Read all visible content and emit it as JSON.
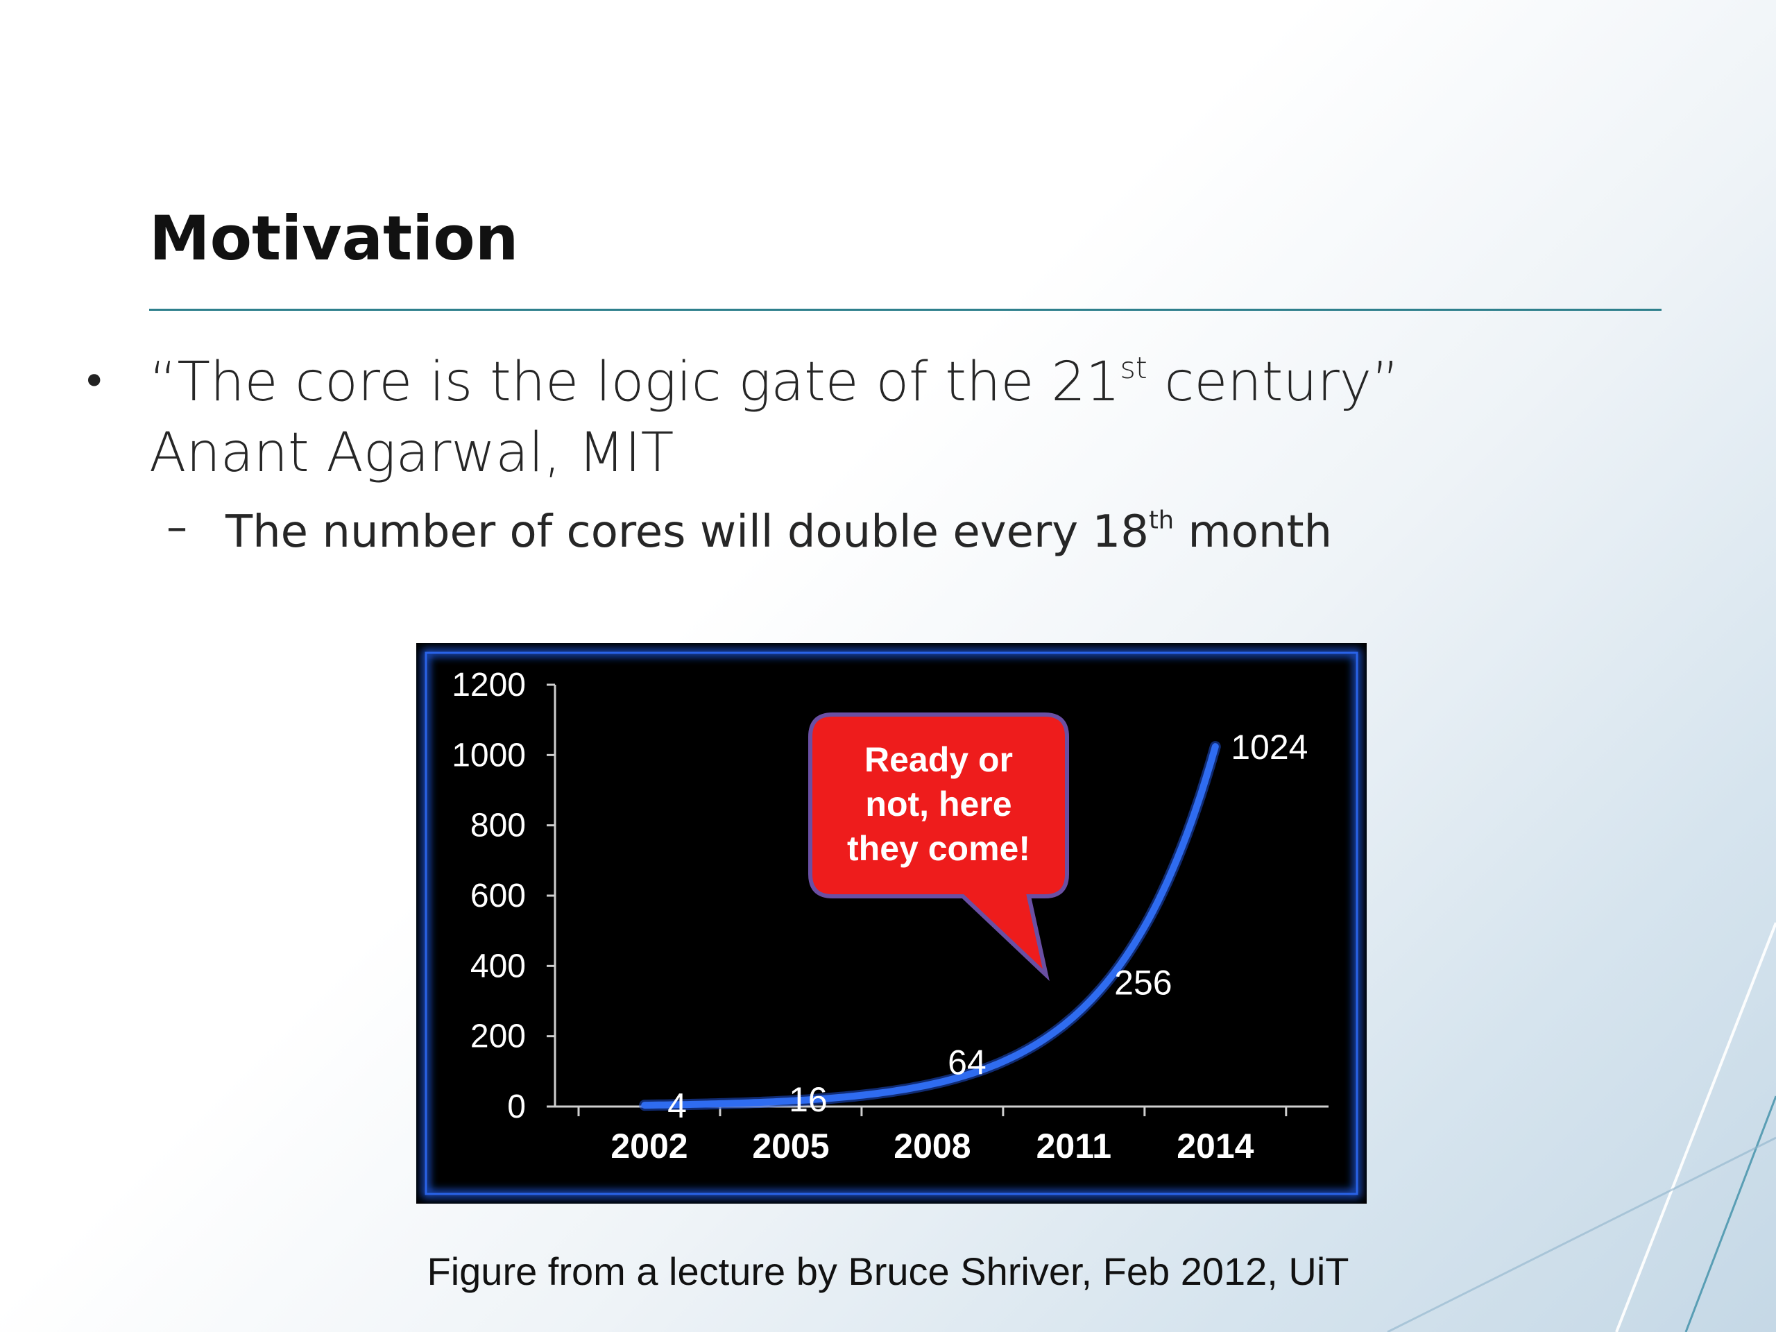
{
  "slide": {
    "title": "Motivation",
    "bullet": {
      "quote_before": "“The core is the logic gate of the 21",
      "quote_sup": "st",
      "quote_after": " century”",
      "author": "Anant Agarwal, MIT"
    },
    "sub_bullet": {
      "before": "The number of cores will double every 18",
      "sup": "th",
      "after": " month"
    },
    "caption": "Figure from a lecture by Bruce Shriver, Feb 2012, UiT"
  },
  "chart_data": {
    "type": "line",
    "x": [
      2002,
      2005,
      2008,
      2011,
      2014
    ],
    "categories": [
      "2002",
      "2005",
      "2008",
      "2011",
      "2014"
    ],
    "values": [
      4,
      16,
      64,
      256,
      1024
    ],
    "data_labels": [
      "4",
      "16",
      "64",
      "256",
      "1024"
    ],
    "yticks": [
      "0",
      "200",
      "400",
      "600",
      "800",
      "1000",
      "1200"
    ],
    "ylim": [
      0,
      1200
    ],
    "title": "",
    "xlabel": "",
    "ylabel": "",
    "grid": false,
    "annotation": [
      "Ready or",
      "not, here",
      "they come!"
    ],
    "colors": {
      "line": "#2f6cf0",
      "callout": "#ee1c1c",
      "background": "#000000",
      "frame": "#1f55d6"
    }
  }
}
